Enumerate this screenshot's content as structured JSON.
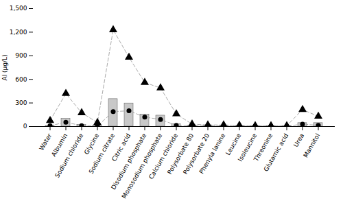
{
  "chart_data": {
    "type": "bar",
    "categories": [
      "Water",
      "Albumin",
      "Sodium chloride",
      "Glycine",
      "Sodium citrate",
      "Citric acid",
      "Disodium phosphate",
      "Monosodium phosphate",
      "Calcium chloride",
      "Polysorbate 80",
      "Polysorbate 20",
      "Phenyla lanine",
      "Leucine",
      "Isoleucine",
      "Threonine",
      "Glutamic acid",
      "Urea",
      "Mannitol"
    ],
    "series": [
      {
        "type": "bar",
        "color": "#c8c8c8",
        "values": [
          10,
          100,
          20,
          15,
          350,
          295,
          155,
          140,
          30,
          10,
          10,
          5,
          5,
          5,
          5,
          5,
          45,
          45
        ]
      },
      {
        "type": "line",
        "marker": "triangle",
        "line_style": "dashed",
        "color": "#000000",
        "values": [
          75,
          420,
          175,
          50,
          1230,
          880,
          560,
          490,
          160,
          30,
          20,
          20,
          15,
          10,
          10,
          10,
          215,
          130
        ]
      },
      {
        "type": "line",
        "marker": "circle",
        "line_style": "dashed",
        "color": "#000000",
        "values": [
          10,
          55,
          10,
          5,
          190,
          200,
          120,
          90,
          15,
          10,
          10,
          5,
          5,
          5,
          5,
          5,
          30,
          15
        ]
      }
    ],
    "ylabel": "Al (μg/L)",
    "ylim": [
      0,
      1500
    ],
    "yticks": [
      0,
      300,
      600,
      900,
      1200,
      1500
    ]
  }
}
